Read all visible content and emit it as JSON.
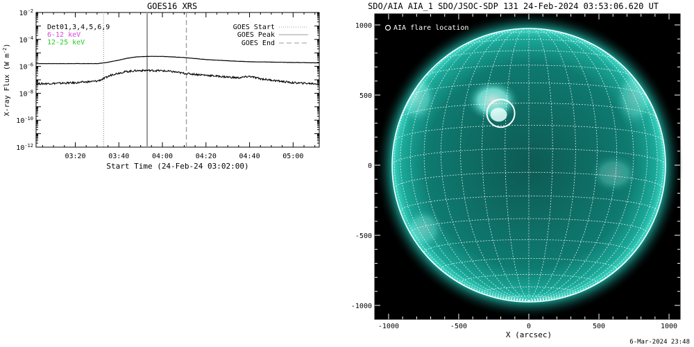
{
  "goes": {
    "title": "GOES16 XRS",
    "ylabel": "X-ray Flux (W m^-2)",
    "ylabel_base": "X-ray Flux (W m",
    "ylabel_exp": "-2",
    "ylabel_end": ")",
    "xlabel": "Start Time (24-Feb-24 03:02:00)",
    "detectors_label": "Det01,3,4,5,6,9",
    "band_low": "6-12 keV",
    "band_high": "12-25 keV",
    "legend": [
      "GOES Start",
      "GOES Peak",
      "GOES End"
    ],
    "ytick_exponents": [
      "-2",
      "-4",
      "-6",
      "-8",
      "-10",
      "-12"
    ],
    "xtick_labels": [
      "03:20",
      "03:40",
      "04:00",
      "04:20",
      "04:40",
      "05:00"
    ],
    "colors": {
      "band_low": "#e040e0",
      "band_high": "#22cc22",
      "marker": "#999999"
    }
  },
  "chart_data": [
    {
      "type": "line",
      "title": "GOES16 XRS",
      "xlabel": "Start Time (24-Feb-24 03:02:00)",
      "ylabel": "X-ray Flux (W m^-2)",
      "yscale": "log",
      "ylim": [
        1e-12,
        0.01
      ],
      "xlim": [
        "03:02",
        "05:12"
      ],
      "grid": false,
      "legend_position": "top-right",
      "markers": {
        "goes_start": "03:33",
        "goes_peak": "03:53",
        "goes_end": "04:11"
      },
      "series": [
        {
          "x": [
            "03:02",
            "03:30",
            "03:34",
            "03:38",
            "03:44",
            "03:48",
            "03:53",
            "04:00",
            "04:10",
            "04:20",
            "04:30",
            "04:40",
            "05:12"
          ],
          "y": [
            1.6e-06,
            1.6e-06,
            1.9e-06,
            2.5e-06,
            4e-06,
            5e-06,
            5.5e-06,
            5.5e-06,
            4.5e-06,
            3.2e-06,
            2.6e-06,
            2.2e-06,
            1.8e-06
          ]
        },
        {
          "x": [
            "03:02",
            "03:20",
            "03:30",
            "03:33",
            "03:37",
            "03:43",
            "03:48",
            "03:53",
            "04:00",
            "04:05",
            "04:10",
            "04:20",
            "04:30",
            "04:35",
            "04:40",
            "04:45",
            "05:00",
            "05:12"
          ],
          "y": [
            5e-08,
            6e-08,
            8e-08,
            1.2e-07,
            2.5e-07,
            4e-07,
            4.8e-07,
            5e-07,
            4.7e-07,
            4e-07,
            3e-07,
            2.2e-07,
            1.6e-07,
            1.4e-07,
            1.8e-07,
            1.2e-07,
            6e-08,
            5e-08
          ]
        }
      ]
    }
  ],
  "aia": {
    "title": "SDO/AIA AIA_1 SDO/JSOC-SDP 131 24-Feb-2024 03:53:06.620 UT",
    "flare_label": "AIA flare location",
    "xlabel": "X (arcsec)",
    "xtick_labels": [
      "-1000",
      "-500",
      "0",
      "500",
      "1000"
    ],
    "ytick_labels": [
      "1000",
      "500",
      "0",
      "-500",
      "-1000"
    ],
    "flare_position_arcsec": {
      "x": -200,
      "y": 370
    },
    "colors": {
      "disk": "#0e8a80",
      "corona": "#20c4b6",
      "bright": "#e6fffb",
      "background": "#000000"
    }
  },
  "timestamp": "6-Mar-2024 23:48"
}
